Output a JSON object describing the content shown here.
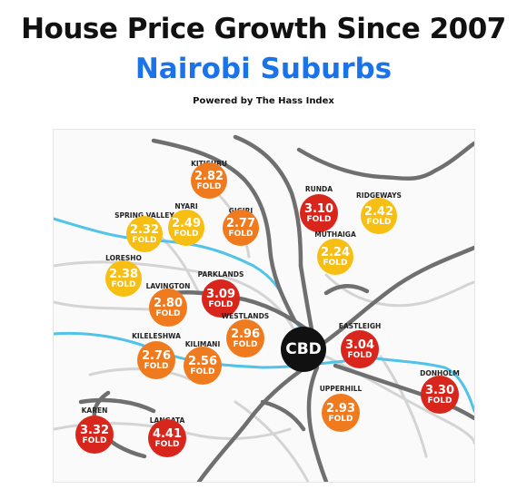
{
  "header": {
    "title": "House Price Growth Since 2007",
    "subtitle": "Nairobi Suburbs",
    "credit": "Powered by The Hass Index"
  },
  "colors": {
    "red": "#d9261c",
    "orange": "#f07a1e",
    "yellow": "#f7bf14",
    "cbd": "#111111",
    "river": "#4fc3e8",
    "road": "#6f6f6f"
  },
  "cbd": {
    "label": "CBD"
  },
  "unit": "FOLD",
  "suburbs": [
    {
      "id": "kitisuru",
      "name": "KITISURU",
      "value": "2.82",
      "color": "orange"
    },
    {
      "id": "runda",
      "name": "RUNDA",
      "value": "3.10",
      "color": "red"
    },
    {
      "id": "ridgeways",
      "name": "RIDGEWAYS",
      "value": "2.42",
      "color": "yellow"
    },
    {
      "id": "spring-valley",
      "name": "SPRING VALLEY",
      "value": "2.32",
      "color": "yellow"
    },
    {
      "id": "nyari",
      "name": "NYARI",
      "value": "2.49",
      "color": "yellow"
    },
    {
      "id": "gigiri",
      "name": "GIGIRI",
      "value": "2.77",
      "color": "orange"
    },
    {
      "id": "muthaiga",
      "name": "MUTHAIGA",
      "value": "2.24",
      "color": "yellow"
    },
    {
      "id": "loresho",
      "name": "LORESHO",
      "value": "2.38",
      "color": "yellow"
    },
    {
      "id": "lavington",
      "name": "LAVINGTON",
      "value": "2.80",
      "color": "orange"
    },
    {
      "id": "parklands",
      "name": "PARKLANDS",
      "value": "3.09",
      "color": "red"
    },
    {
      "id": "westlands",
      "name": "WESTLANDS",
      "value": "2.96",
      "color": "orange"
    },
    {
      "id": "kileleshwa",
      "name": "KILELESHWA",
      "value": "2.76",
      "color": "orange"
    },
    {
      "id": "kilimani",
      "name": "KILIMANI",
      "value": "2.56",
      "color": "orange"
    },
    {
      "id": "eastleigh",
      "name": "EASTLEIGH",
      "value": "3.04",
      "color": "red"
    },
    {
      "id": "upperhill",
      "name": "UPPERHILL",
      "value": "2.93",
      "color": "orange"
    },
    {
      "id": "donholm",
      "name": "DONHOLM",
      "value": "3.30",
      "color": "red"
    },
    {
      "id": "karen",
      "name": "KAREN",
      "value": "3.32",
      "color": "red"
    },
    {
      "id": "langata",
      "name": "LANGATA",
      "value": "4.41",
      "color": "red"
    }
  ]
}
